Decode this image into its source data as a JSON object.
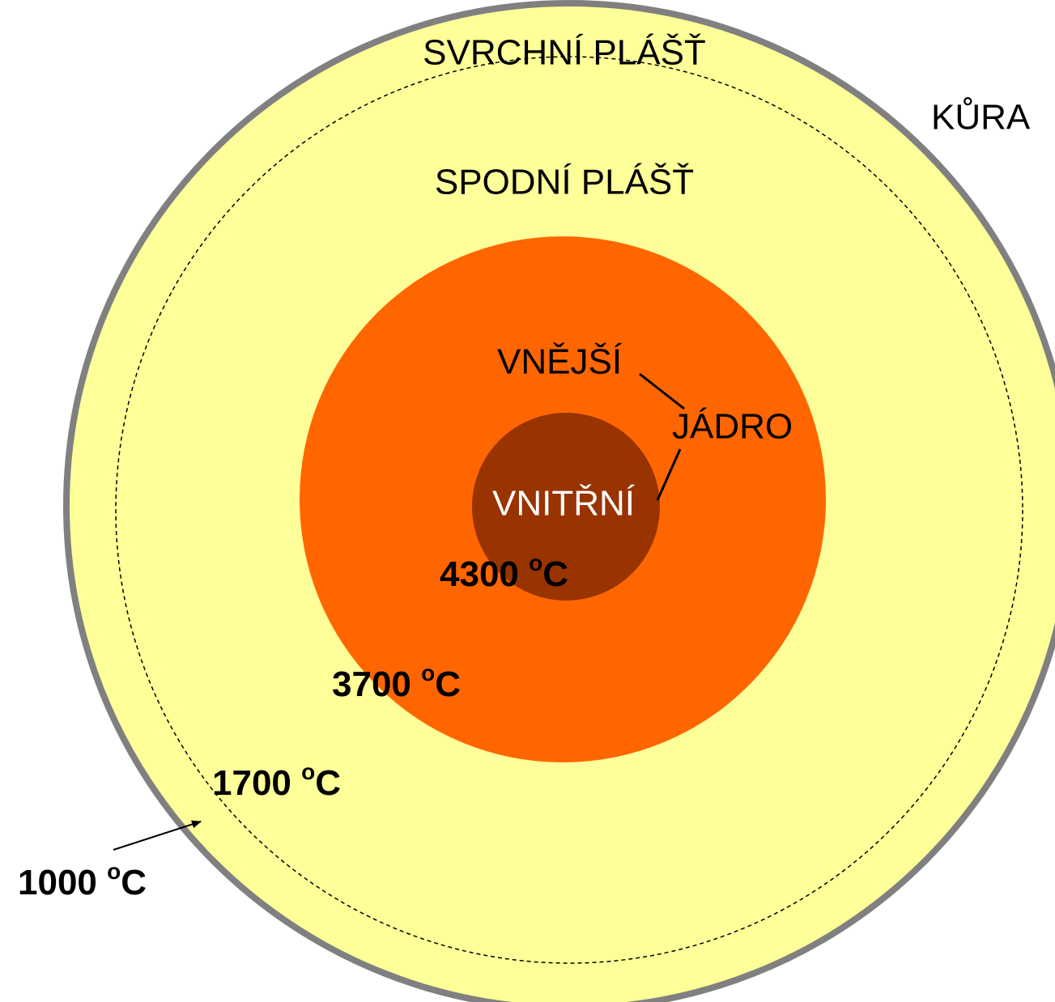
{
  "layers": {
    "upper_mantle": "SVRCHNÍ PLÁŠŤ",
    "crust": "KŮRA",
    "lower_mantle": "SPODNÍ PLÁŠŤ",
    "outer": "VNĚJŠÍ",
    "core": "JÁDRO",
    "inner": "VNITŘNÍ"
  },
  "temperatures": [
    {
      "number": "4300",
      "sup": "o",
      "unit": "C"
    },
    {
      "number": "3700",
      "sup": "o",
      "unit": "C"
    },
    {
      "number": "1700",
      "sup": "o",
      "unit": "C"
    },
    {
      "number": "1000",
      "sup": "o",
      "unit": "C"
    }
  ]
}
